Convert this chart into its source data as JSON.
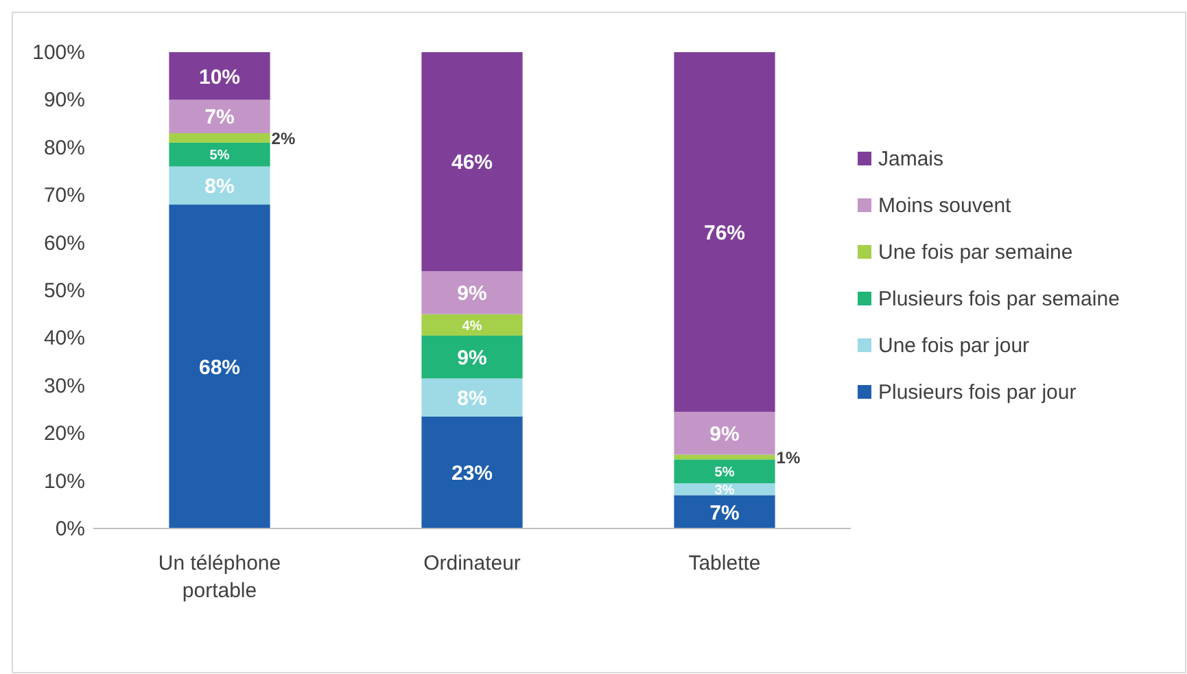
{
  "chart_data": {
    "type": "bar",
    "stacked": true,
    "categories": [
      "Un téléphone portable",
      "Ordinateur",
      "Tablette"
    ],
    "series": [
      {
        "name": "Plusieurs fois par jour",
        "color": "#1f5fad",
        "values": [
          68,
          23.5,
          7
        ],
        "value_labels": [
          "68%",
          "23%",
          "7%"
        ]
      },
      {
        "name": "Une fois par jour",
        "color": "#9ddae6",
        "values": [
          8,
          8,
          2.5
        ],
        "value_labels": [
          "8%",
          "8%",
          "3%"
        ]
      },
      {
        "name": "Plusieurs fois par semaine",
        "color": "#21b57a",
        "values": [
          5,
          9,
          5
        ],
        "value_labels": [
          "5%",
          "9%",
          "5%"
        ]
      },
      {
        "name": "Une fois par semaine",
        "color": "#a5d04a",
        "values": [
          2,
          4.5,
          1
        ],
        "value_labels": [
          "2%",
          "4%",
          "1%"
        ]
      },
      {
        "name": "Moins souvent",
        "color": "#c496c8",
        "values": [
          7,
          9,
          9
        ],
        "value_labels": [
          "7%",
          "9%",
          "9%"
        ]
      },
      {
        "name": "Jamais",
        "color": "#7f3f98",
        "values": [
          10,
          46,
          75.5
        ],
        "value_labels": [
          "10%",
          "46%",
          "76%"
        ]
      }
    ],
    "ylim": [
      0,
      100
    ],
    "yticks": [
      {
        "value": 0,
        "label": "0%"
      },
      {
        "value": 10,
        "label": "10%"
      },
      {
        "value": 20,
        "label": "20%"
      },
      {
        "value": 30,
        "label": "30%"
      },
      {
        "value": 40,
        "label": "40%"
      },
      {
        "value": 50,
        "label": "50%"
      },
      {
        "value": 60,
        "label": "60%"
      },
      {
        "value": 70,
        "label": "70%"
      },
      {
        "value": 80,
        "label": "80%"
      },
      {
        "value": 90,
        "label": "90%"
      },
      {
        "value": 100,
        "label": "100%"
      }
    ],
    "legend": "right",
    "grid": false
  }
}
